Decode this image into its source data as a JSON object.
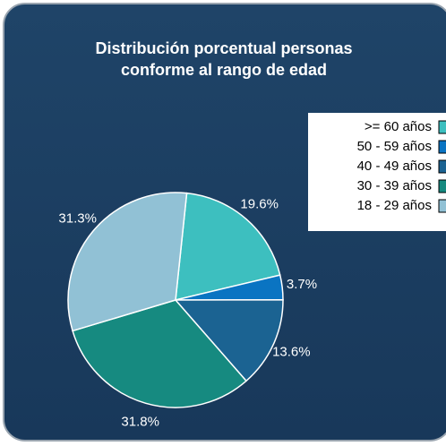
{
  "chart_data": {
    "type": "pie",
    "title": [
      "Distribución porcentual personas",
      "conforme al rango de edad"
    ],
    "categories": [
      ">= 60 años",
      "50 - 59 años",
      "40 - 49 años",
      "30 - 39 años",
      "18 - 29 años"
    ],
    "values": [
      19.6,
      3.7,
      13.6,
      31.8,
      31.3
    ],
    "value_labels": [
      "19.6%",
      "3.7%",
      "13.6%",
      "31.8%",
      "31.3%"
    ],
    "colors": [
      "#3dbfbf",
      "#0a74c2",
      "#1b6392",
      "#168a80",
      "#91c1d5"
    ],
    "legend": "top-right"
  }
}
